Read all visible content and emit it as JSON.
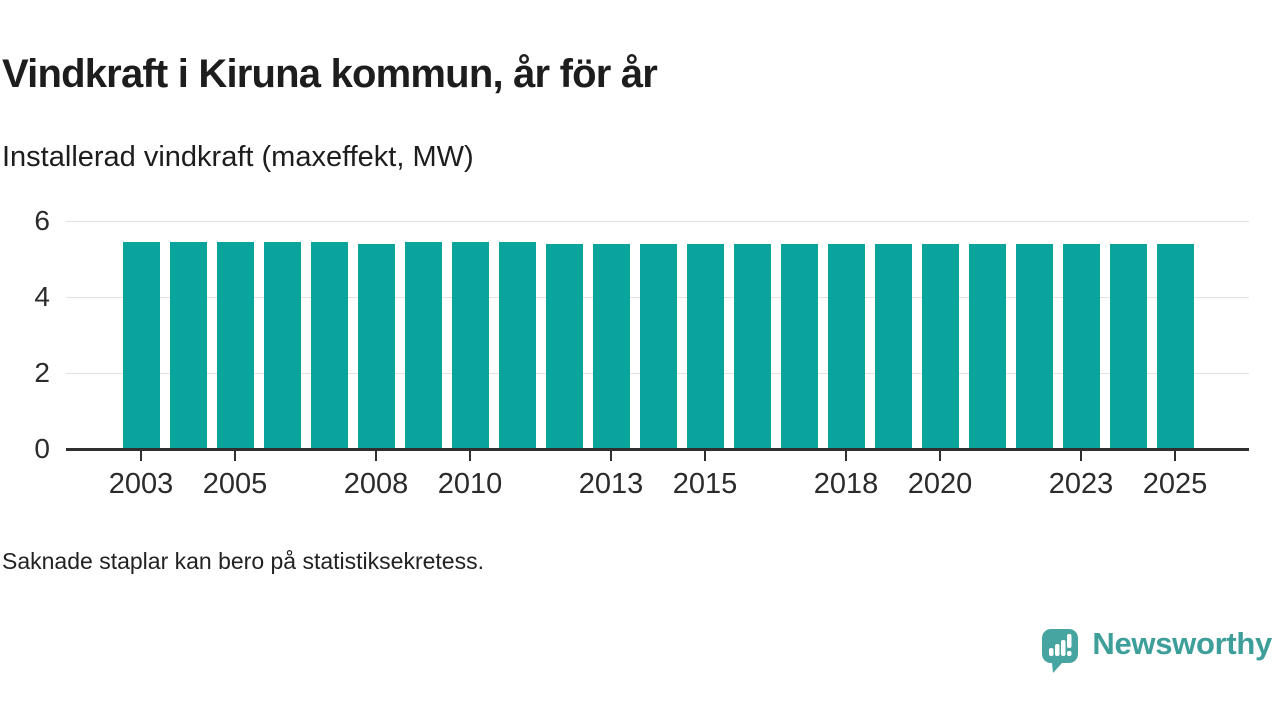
{
  "title": "Vindkraft i Kiruna kommun, år för år",
  "subtitle": "Installerad vindkraft (maxeffekt, MW)",
  "footnote": "Saknade staplar kan bero på statistiksekretess.",
  "branding": {
    "name": "Newsworthy",
    "icon": "speech-bubble-with-bar-chart-and-exclamation",
    "wordmark_color": "#3d9e9a",
    "icon_color": "#47a5a1"
  },
  "colors": {
    "bar": "#0aa49c",
    "axis": "#2f2f2f",
    "gridline": "#e2e2e2",
    "text": "#1d1d1d",
    "background": "#ffffff"
  },
  "chart_data": {
    "type": "bar",
    "title": "Vindkraft i Kiruna kommun, år för år",
    "subtitle": "Installerad vindkraft (maxeffekt, MW)",
    "unit": "MW",
    "x": [
      2003,
      2004,
      2005,
      2006,
      2007,
      2008,
      2009,
      2010,
      2011,
      2012,
      2013,
      2014,
      2015,
      2016,
      2017,
      2018,
      2019,
      2020,
      2021,
      2022,
      2023,
      2024,
      2025
    ],
    "values": [
      5.45,
      5.45,
      5.45,
      5.45,
      5.45,
      5.4,
      5.45,
      5.45,
      5.45,
      5.4,
      5.4,
      5.4,
      5.4,
      5.4,
      5.4,
      5.4,
      5.4,
      5.4,
      5.4,
      5.4,
      5.4,
      5.4,
      5.4
    ],
    "ylim": [
      0,
      6
    ],
    "yticks": [
      0,
      2,
      4,
      6
    ],
    "xticks_labeled": [
      2003,
      2005,
      2008,
      2010,
      2013,
      2015,
      2018,
      2020,
      2023,
      2025
    ],
    "grid": "horizontal",
    "legend": "none"
  }
}
